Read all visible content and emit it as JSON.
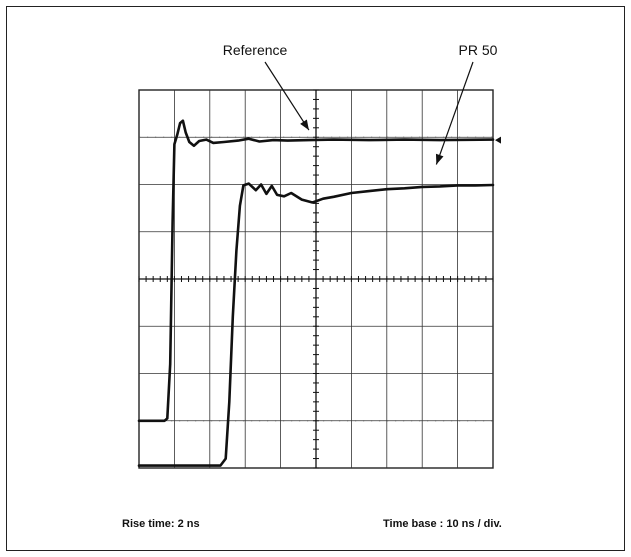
{
  "caption": {
    "rise_time": "Rise time: 2 ns",
    "time_base": "Time base : 10 ns / div."
  },
  "chart_data": {
    "type": "line",
    "title": "",
    "xlabel": "",
    "ylabel": "",
    "divisions": {
      "x": 10,
      "y": 8
    },
    "xlim": [
      0,
      10
    ],
    "ylim": [
      0,
      8
    ],
    "grid": true,
    "annotations": [
      {
        "text": "Reference",
        "series": "Reference",
        "points_to": [
          4.8,
          6.94
        ]
      },
      {
        "text": "PR 50",
        "series": "PR 50",
        "points_to": [
          8.4,
          6.0
        ]
      }
    ],
    "marker": "right-edge arrow at y = 6.94",
    "series": [
      {
        "name": "Reference",
        "x": [
          0,
          0.72,
          0.8,
          0.88,
          0.95,
          1.0,
          1.08,
          1.16,
          1.24,
          1.32,
          1.42,
          1.55,
          1.7,
          1.9,
          2.1,
          2.4,
          2.8,
          3.1,
          3.4,
          3.8,
          4.2,
          4.8,
          5.5,
          6.5,
          7.5,
          8.5,
          10
        ],
        "y": [
          1.0,
          1.0,
          1.05,
          2.2,
          5.2,
          6.85,
          7.05,
          7.3,
          7.35,
          7.1,
          6.9,
          6.82,
          6.92,
          6.95,
          6.88,
          6.9,
          6.93,
          6.97,
          6.91,
          6.94,
          6.93,
          6.94,
          6.95,
          6.94,
          6.95,
          6.94,
          6.95
        ]
      },
      {
        "name": "PR 50",
        "x": [
          0,
          2.3,
          2.45,
          2.55,
          2.65,
          2.75,
          2.85,
          2.95,
          3.1,
          3.3,
          3.45,
          3.6,
          3.75,
          3.9,
          4.1,
          4.3,
          4.6,
          4.9,
          5.2,
          5.5,
          6.0,
          6.5,
          7.0,
          7.5,
          8.0,
          8.5,
          9.0,
          9.5,
          10
        ],
        "y": [
          0.05,
          0.05,
          0.2,
          1.4,
          3.2,
          4.6,
          5.55,
          5.98,
          6.02,
          5.88,
          6.0,
          5.8,
          5.97,
          5.78,
          5.75,
          5.82,
          5.68,
          5.62,
          5.7,
          5.74,
          5.82,
          5.86,
          5.9,
          5.92,
          5.95,
          5.96,
          5.98,
          5.98,
          5.99
        ]
      }
    ]
  }
}
